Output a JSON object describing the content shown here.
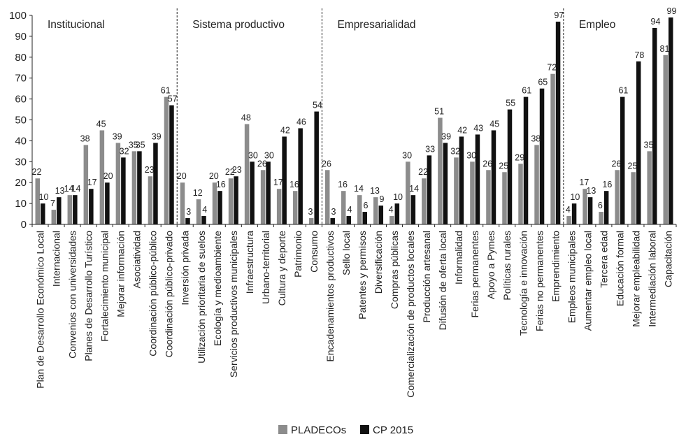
{
  "chart_data": {
    "type": "bar",
    "title": "",
    "xlabel": "",
    "ylabel": "",
    "ylim": [
      0,
      100
    ],
    "yticks": [
      0,
      10,
      20,
      30,
      40,
      50,
      60,
      70,
      80,
      90,
      100
    ],
    "grid": false,
    "legend_position": "bottom-center",
    "colors": {
      "PLADECOs": "#8c8c8c",
      "CP 2015": "#111111"
    },
    "groups": [
      {
        "label": "Institucional",
        "start_index": 0,
        "count": 9
      },
      {
        "label": "Sistema productivo",
        "start_index": 9,
        "count": 9
      },
      {
        "label": "Empresarialidad",
        "start_index": 18,
        "count": 15
      },
      {
        "label": "Empleo",
        "start_index": 33,
        "count": 7
      }
    ],
    "categories": [
      "Plan de Desarrollo Económico Local",
      "Internacional",
      "Convenios con universidades",
      "Planes de Desarrollo Turístico",
      "Fortalecimiento municipal",
      "Mejorar información",
      "Asociatividad",
      "Coordinación público-público",
      "Coordinación público-privado",
      "Inversión privada",
      "Utilización prioritaria de suelos",
      "Ecología y medioambiente",
      "Servicios productivos municipales",
      "Infraestructura",
      "Urbano-territorial",
      "Cultura y deporte",
      "Patrimonio",
      "Consumo",
      "Encadenamientos productivos",
      "Sello local",
      "Patentes y permisos",
      "Diversificación",
      "Compras públicas",
      "Comercialización de productos locales",
      "Producción artesanal",
      "Difusión de oferta local",
      "Informalidad",
      "Ferias permanentes",
      "Apoyo a Pymes",
      "Políticas rurales",
      "Tecnología e innovación",
      "Ferias no permanentes",
      "Emprendimiento",
      "Empleos municipales",
      "Aumentar empleo local",
      "Tercera edad",
      "Educación formal",
      "Mejorar empleabilidad",
      "Intermediación laboral",
      "Capacitación"
    ],
    "series": [
      {
        "name": "PLADECOs",
        "values": [
          22,
          7,
          14,
          38,
          45,
          39,
          35,
          23,
          61,
          20,
          12,
          20,
          22,
          48,
          26,
          17,
          16,
          3,
          26,
          16,
          14,
          13,
          4,
          30,
          22,
          51,
          32,
          30,
          26,
          25,
          29,
          38,
          72,
          4,
          17,
          6,
          26,
          25,
          35,
          81
        ]
      },
      {
        "name": "CP 2015",
        "values": [
          10,
          13,
          14,
          17,
          20,
          32,
          35,
          39,
          57,
          3,
          4,
          16,
          23,
          30,
          30,
          42,
          46,
          54,
          3,
          4,
          6,
          9,
          10,
          14,
          33,
          39,
          42,
          43,
          45,
          55,
          61,
          65,
          97,
          10,
          13,
          16,
          61,
          78,
          94,
          99
        ]
      }
    ]
  }
}
